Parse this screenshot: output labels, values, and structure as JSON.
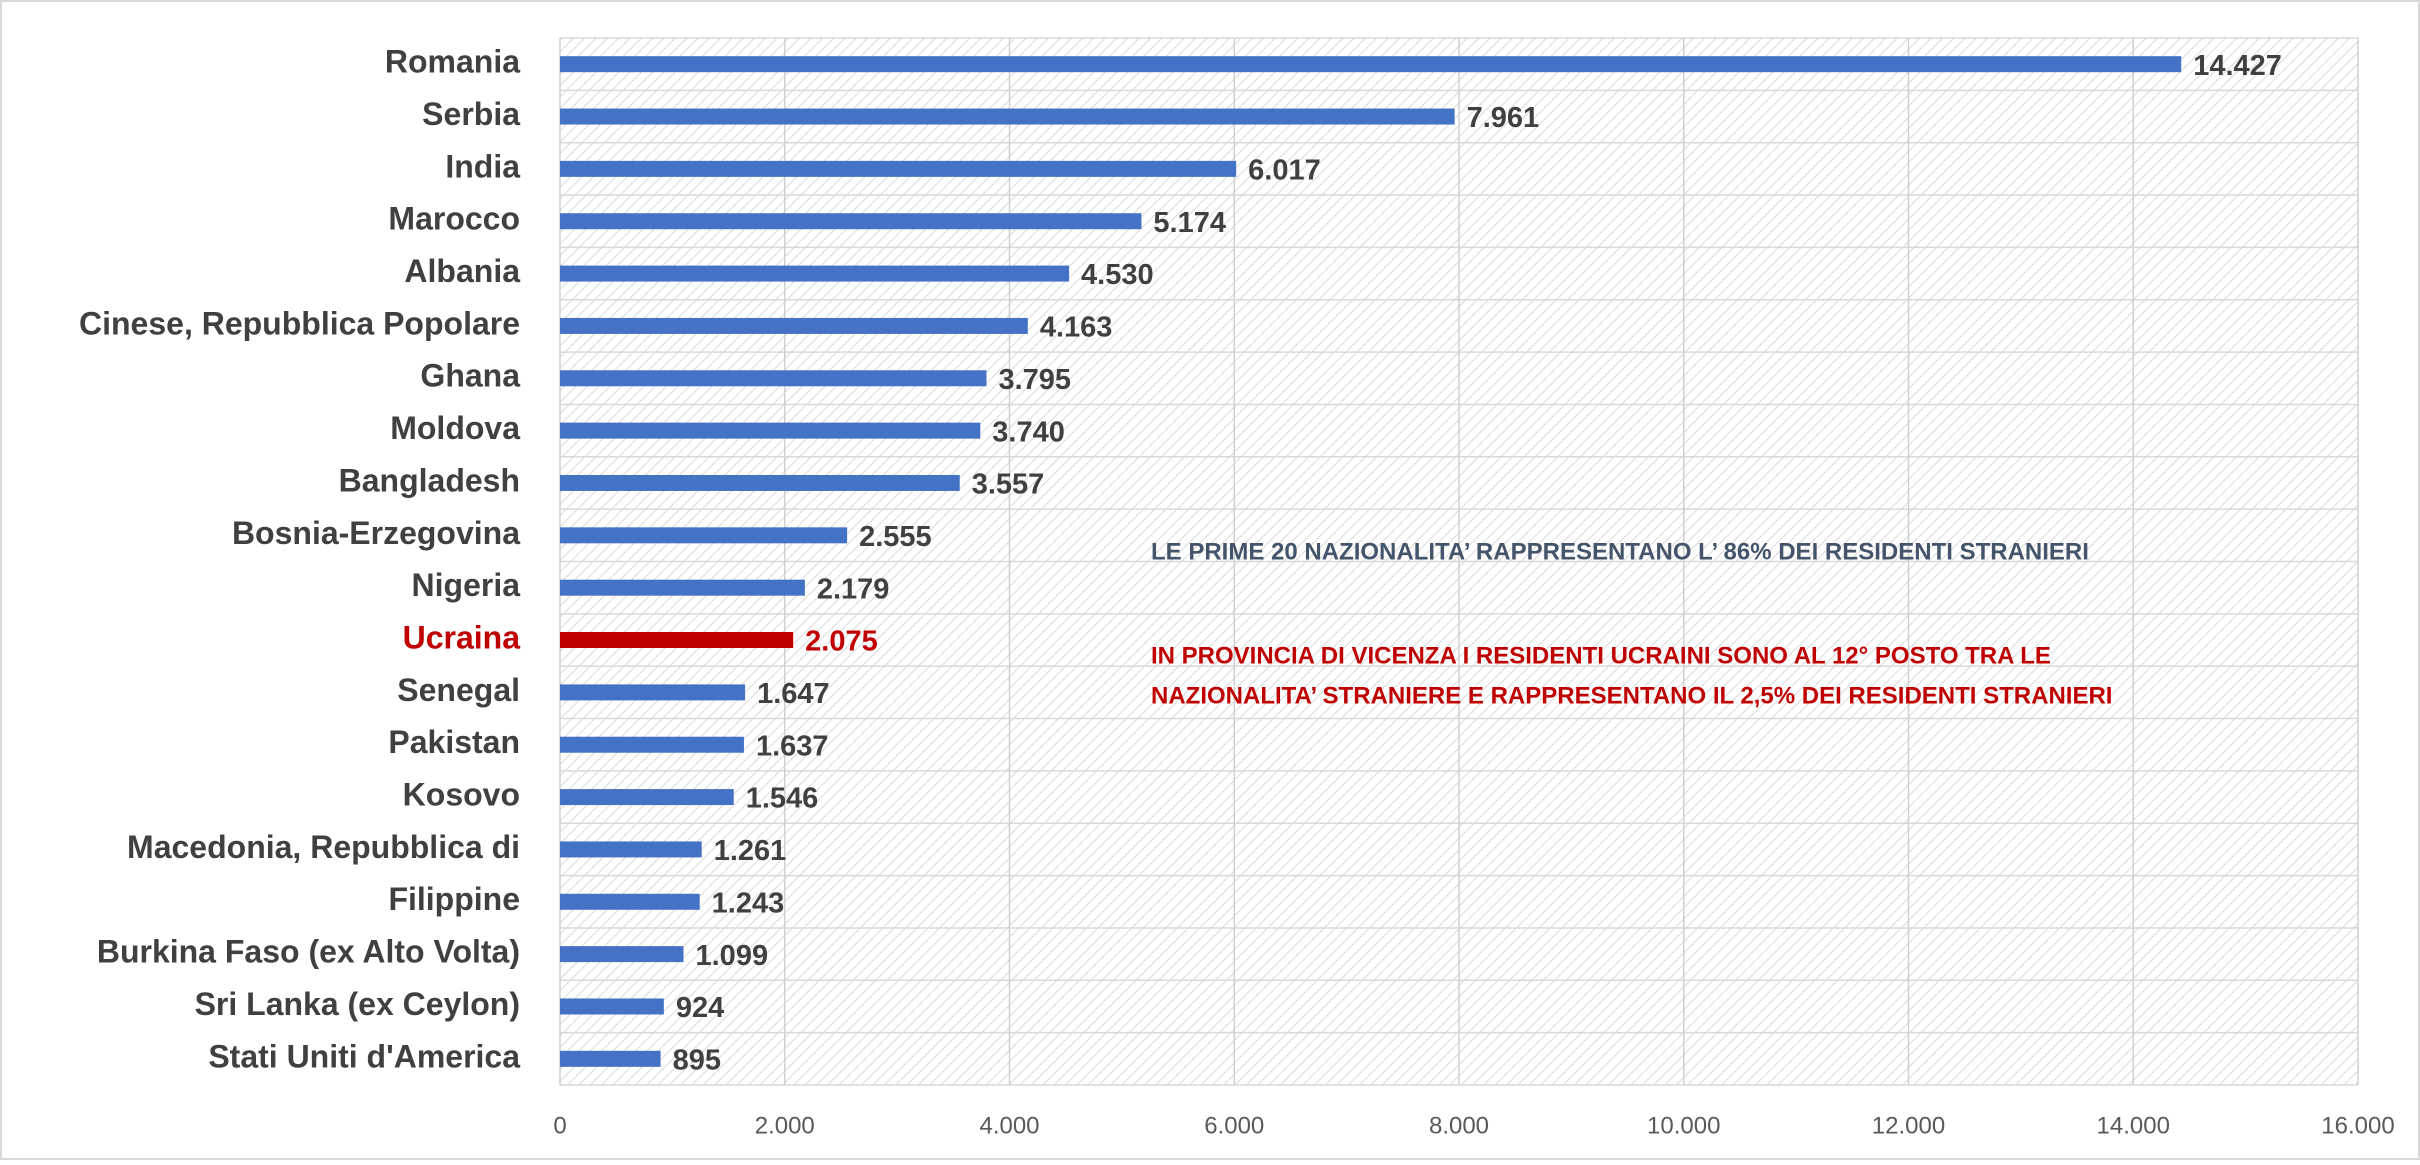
{
  "chart_data": {
    "type": "hbar",
    "categories": [
      "Romania",
      "Serbia",
      "India",
      "Marocco",
      "Albania",
      "Cinese, Repubblica Popolare",
      "Ghana",
      "Moldova",
      "Bangladesh",
      "Bosnia-Erzegovina",
      "Nigeria",
      "Ucraina",
      "Senegal",
      "Pakistan",
      "Kosovo",
      "Macedonia, Repubblica di",
      "Filippine",
      "Burkina Faso (ex Alto Volta)",
      "Sri Lanka (ex Ceylon)",
      "Stati Uniti d'America"
    ],
    "values": [
      14427,
      7961,
      6017,
      5174,
      4530,
      4163,
      3795,
      3740,
      3557,
      2555,
      2179,
      2075,
      1647,
      1637,
      1546,
      1261,
      1243,
      1099,
      924,
      895
    ],
    "value_labels": [
      "14.427",
      "7.961",
      "6.017",
      "5.174",
      "4.530",
      "4.163",
      "3.795",
      "3.740",
      "3.557",
      "2.555",
      "2.179",
      "2.075",
      "1.647",
      "1.637",
      "1.546",
      "1.261",
      "1.243",
      "1.099",
      "924",
      "895"
    ],
    "colors": [
      "#4472c4",
      "#4472c4",
      "#4472c4",
      "#4472c4",
      "#4472c4",
      "#4472c4",
      "#4472c4",
      "#4472c4",
      "#4472c4",
      "#4472c4",
      "#4472c4",
      "#c00000",
      "#4472c4",
      "#4472c4",
      "#4472c4",
      "#4472c4",
      "#4472c4",
      "#4472c4",
      "#4472c4",
      "#4472c4"
    ],
    "xlim": [
      0,
      16000
    ],
    "xticks": [
      0,
      {
        "value": 2000,
        "label": "2.000"
      },
      {
        "value": 4000,
        "label": "4.000"
      },
      {
        "value": 6000,
        "label": "6.000"
      },
      {
        "value": 8000,
        "label": "8.000"
      },
      {
        "value": 10000,
        "label": "10.000"
      },
      {
        "value": 12000,
        "label": "12.000"
      },
      {
        "value": 14000,
        "label": "14.000"
      },
      {
        "value": 16000,
        "label": "16.000"
      }
    ],
    "grid": true,
    "annotations": [
      {
        "lines": [
          "LE PRIME 20 NAZIONALITA’ RAPPRESENTANO L’ 86% DEI RESIDENTI STRANIERI"
        ],
        "color": "#44546a"
      },
      {
        "lines": [
          "IN PROVINCIA DI VICENZA I RESIDENTI UCRAINI SONO AL 12° POSTO TRA LE",
          "NAZIONALITA’ STRANIERE E RAPPRESENTANO IL 2,5% DEI RESIDENTI STRANIERI"
        ],
        "color": "#c00000"
      }
    ]
  }
}
